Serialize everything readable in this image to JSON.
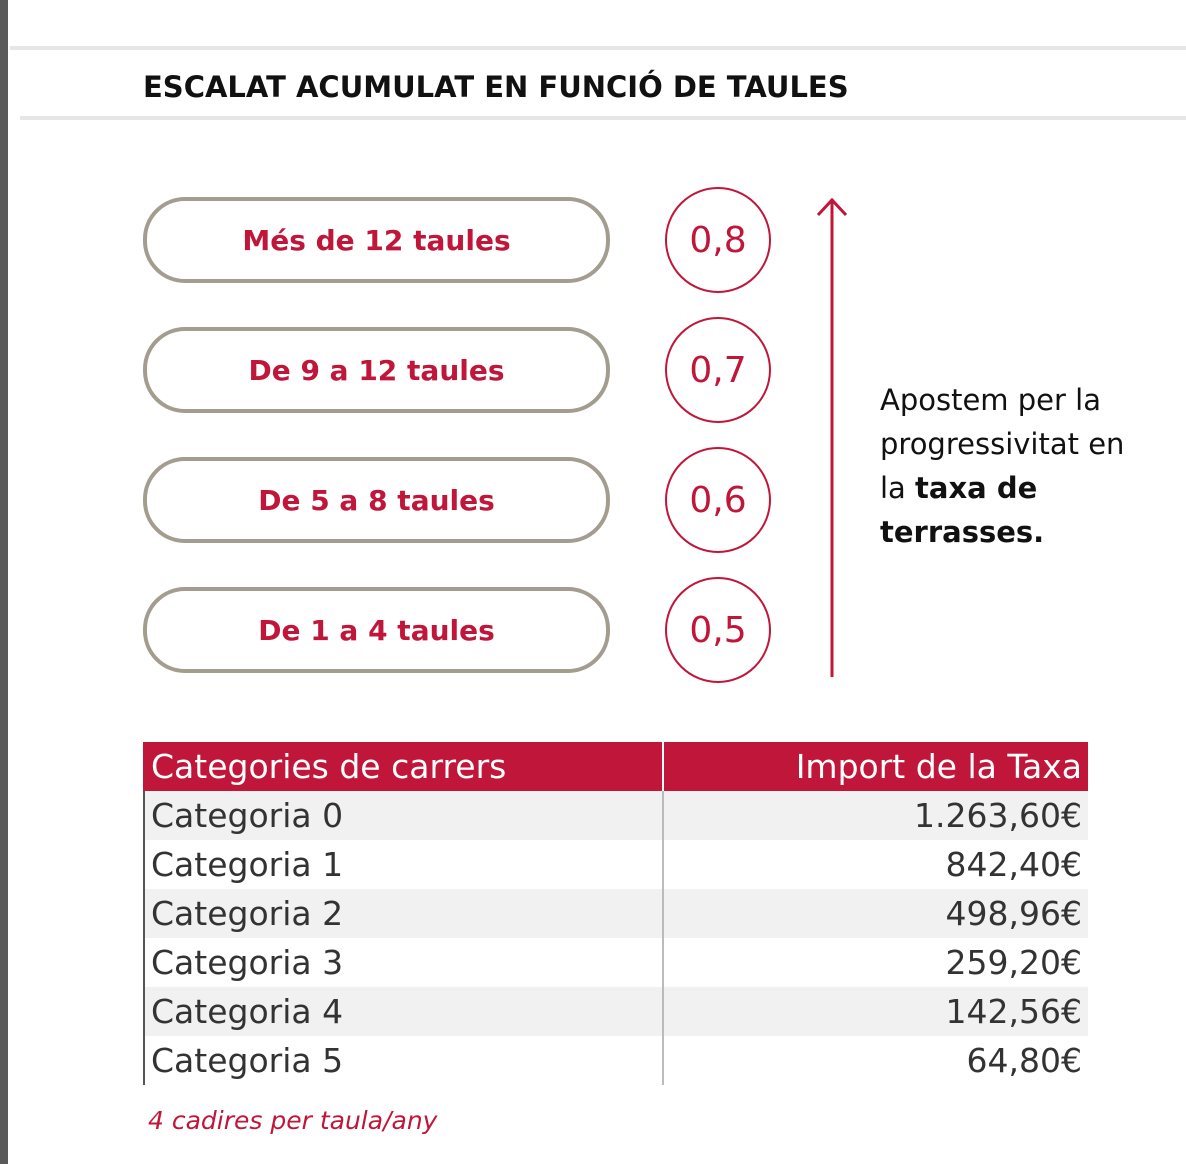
{
  "header": {
    "title": "ESCALAT ACUMULAT EN FUNCIÓ DE TAULES"
  },
  "tiers": [
    {
      "label": "Més de 12 taules",
      "coefficient": "0,8"
    },
    {
      "label": "De 9 a 12 taules",
      "coefficient": "0,7"
    },
    {
      "label": "De 5 a 8 taules",
      "coefficient": "0,6"
    },
    {
      "label": "De 1 a 4 taules",
      "coefficient": "0,5"
    }
  ],
  "note": {
    "text": "Apostem per la progressivitat en la",
    "bold": "taxa de terrasses."
  },
  "table": {
    "headers": [
      "Categories de carrers",
      "Import de la Taxa"
    ],
    "rows": [
      [
        "Categoria 0",
        "1.263,60€"
      ],
      [
        "Categoria 1",
        "842,40€"
      ],
      [
        "Categoria 2",
        "498,96€"
      ],
      [
        "Categoria 3",
        "259,20€"
      ],
      [
        "Categoria 4",
        "142,56€"
      ],
      [
        "Categoria 5",
        "64,80€"
      ]
    ]
  },
  "footnote": "4 cadires per taula/any"
}
